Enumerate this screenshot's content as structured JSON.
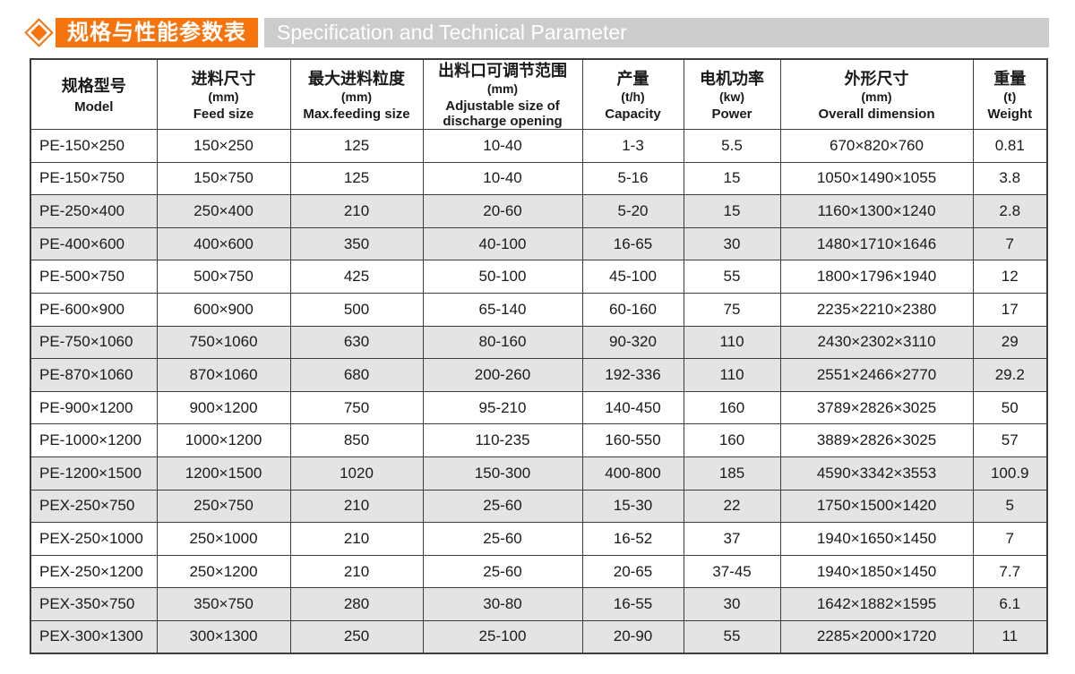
{
  "header": {
    "title_cn": "规格与性能参数表",
    "title_en": "Specification and Technical Parameter"
  },
  "colors": {
    "accent_orange": "#f7740c",
    "en_bar_gray": "#cccccc",
    "alt_row_gray": "#e4e4e4",
    "border_dark": "#3d3d3d"
  },
  "table": {
    "columns": [
      {
        "key": "model",
        "cn": "规格型号",
        "unit": "",
        "en": "Model"
      },
      {
        "key": "feed-size",
        "cn": "进料尺寸",
        "unit": "(mm)",
        "en": "Feed size"
      },
      {
        "key": "max-feeding",
        "cn": "最大进料粒度",
        "unit": "(mm)",
        "en": "Max.feeding size"
      },
      {
        "key": "discharge",
        "cn": "出料口可调节范围",
        "unit": "(mm)",
        "en": "Adjustable size of discharge opening"
      },
      {
        "key": "capacity",
        "cn": "产量",
        "unit": "(t/h)",
        "en": "Capacity"
      },
      {
        "key": "power",
        "cn": "电机功率",
        "unit": "(kw)",
        "en": "Power"
      },
      {
        "key": "dimension",
        "cn": "外形尺寸",
        "unit": "(mm)",
        "en": "Overall dimension"
      },
      {
        "key": "weight",
        "cn": "重量",
        "unit": "(t)",
        "en": "Weight"
      }
    ],
    "rows": [
      [
        "PE-150×250",
        "150×250",
        "125",
        "10-40",
        "1-3",
        "5.5",
        "670×820×760",
        "0.81"
      ],
      [
        "PE-150×750",
        "150×750",
        "125",
        "10-40",
        "5-16",
        "15",
        "1050×1490×1055",
        "3.8"
      ],
      [
        "PE-250×400",
        "250×400",
        "210",
        "20-60",
        "5-20",
        "15",
        "1160×1300×1240",
        "2.8"
      ],
      [
        "PE-400×600",
        "400×600",
        "350",
        "40-100",
        "16-65",
        "30",
        "1480×1710×1646",
        "7"
      ],
      [
        "PE-500×750",
        "500×750",
        "425",
        "50-100",
        "45-100",
        "55",
        "1800×1796×1940",
        "12"
      ],
      [
        "PE-600×900",
        "600×900",
        "500",
        "65-140",
        "60-160",
        "75",
        "2235×2210×2380",
        "17"
      ],
      [
        "PE-750×1060",
        "750×1060",
        "630",
        "80-160",
        "90-320",
        "110",
        "2430×2302×3110",
        "29"
      ],
      [
        "PE-870×1060",
        "870×1060",
        "680",
        "200-260",
        "192-336",
        "110",
        "2551×2466×2770",
        "29.2"
      ],
      [
        "PE-900×1200",
        "900×1200",
        "750",
        "95-210",
        "140-450",
        "160",
        "3789×2826×3025",
        "50"
      ],
      [
        "PE-1000×1200",
        "1000×1200",
        "850",
        "110-235",
        "160-550",
        "160",
        "3889×2826×3025",
        "57"
      ],
      [
        "PE-1200×1500",
        "1200×1500",
        "1020",
        "150-300",
        "400-800",
        "185",
        "4590×3342×3553",
        "100.9"
      ],
      [
        "PEX-250×750",
        "250×750",
        "210",
        "25-60",
        "15-30",
        "22",
        "1750×1500×1420",
        "5"
      ],
      [
        "PEX-250×1000",
        "250×1000",
        "210",
        "25-60",
        "16-52",
        "37",
        "1940×1650×1450",
        "7"
      ],
      [
        "PEX-250×1200",
        "250×1200",
        "210",
        "25-60",
        "20-65",
        "37-45",
        "1940×1850×1450",
        "7.7"
      ],
      [
        "PEX-350×750",
        "350×750",
        "280",
        "30-80",
        "16-55",
        "30",
        "1642×1882×1595",
        "6.1"
      ],
      [
        "PEX-300×1300",
        "300×1300",
        "250",
        "25-100",
        "20-90",
        "55",
        "2285×2000×1720",
        "11"
      ]
    ]
  }
}
